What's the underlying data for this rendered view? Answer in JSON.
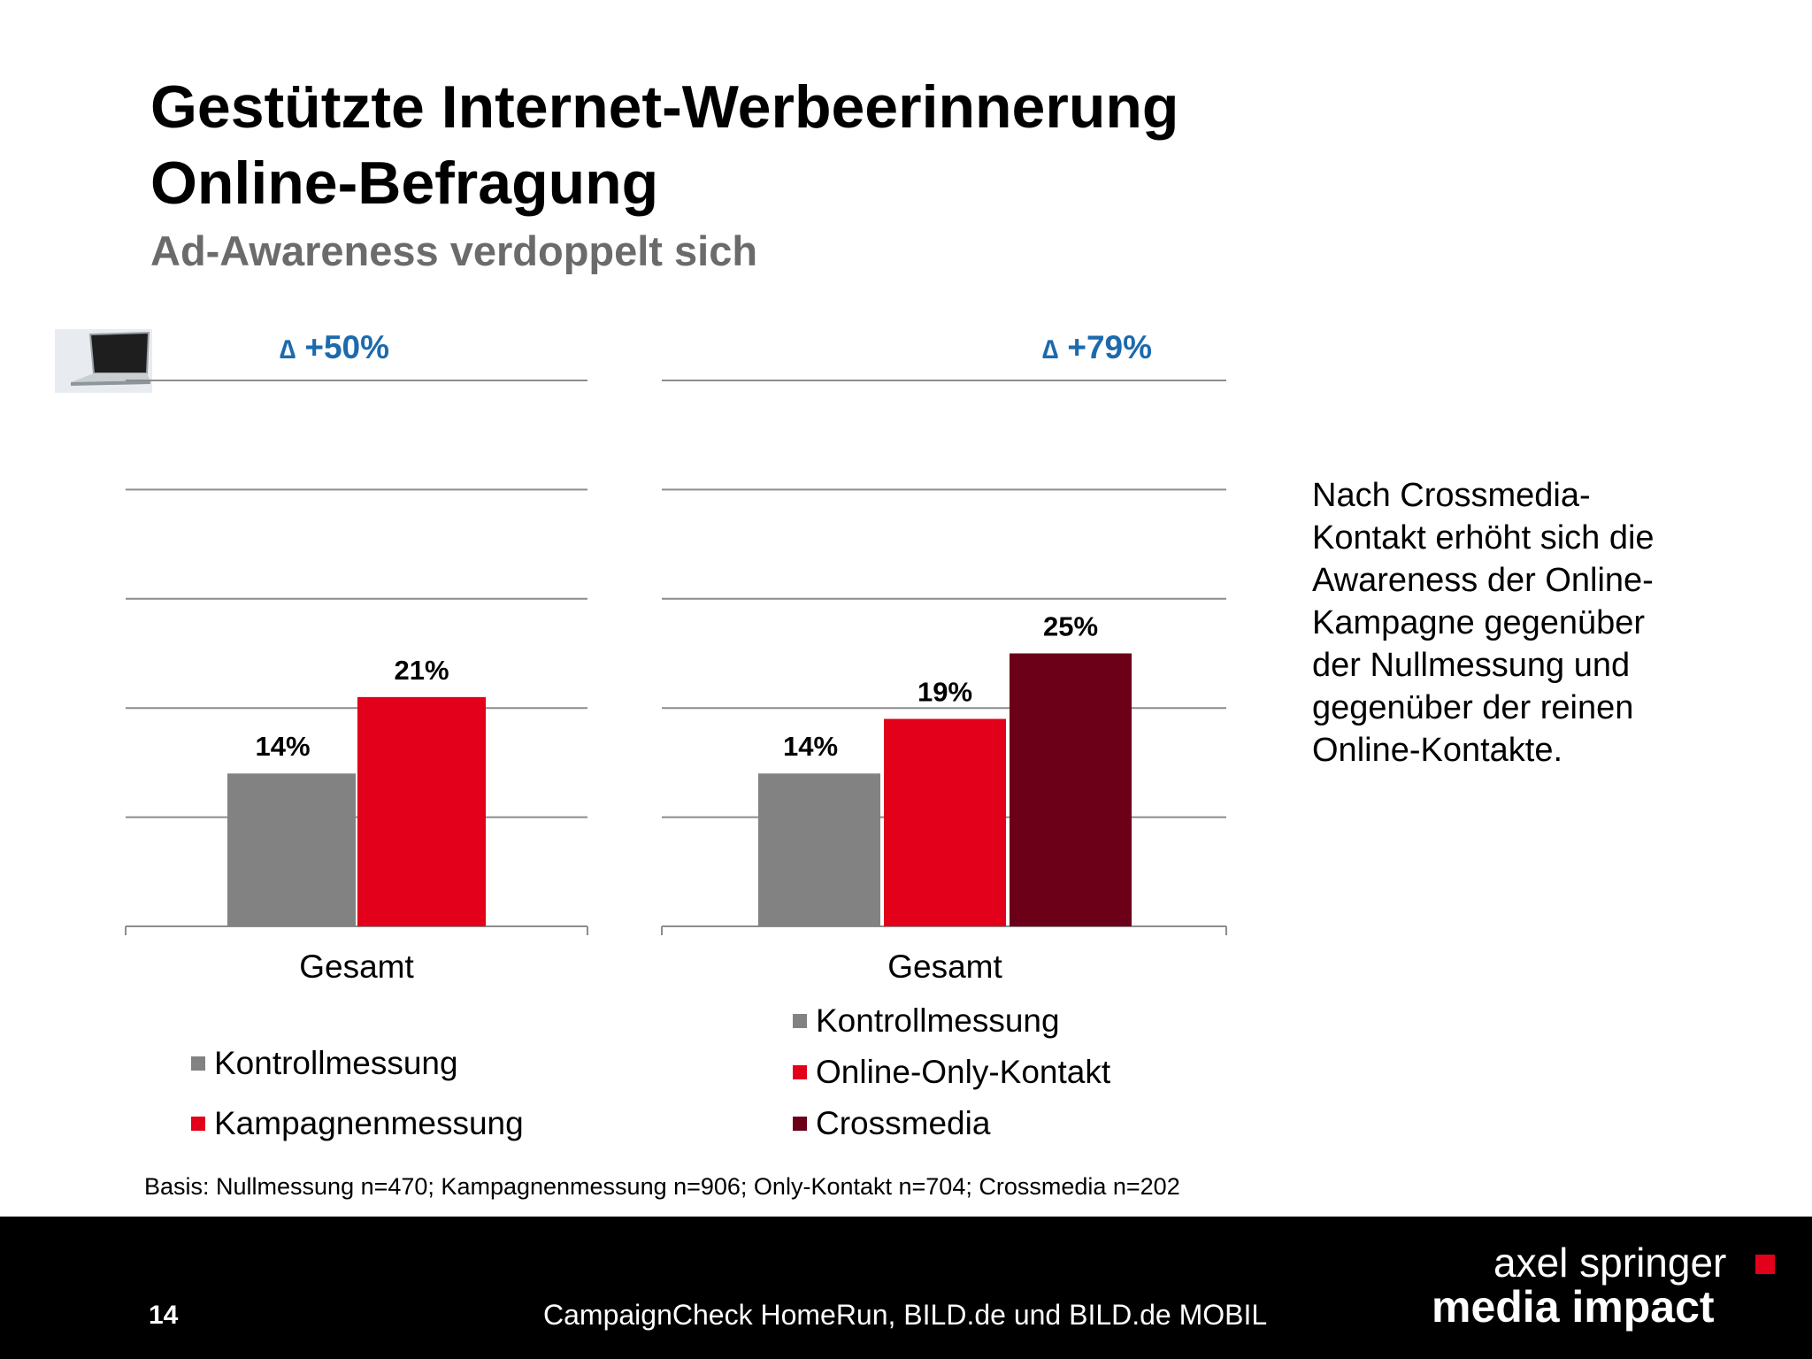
{
  "slide": {
    "title_line1": "Gestützte Internet-Werbeerinnerung",
    "title_line2": "Online-Befragung",
    "subtitle": "Ad-Awareness verdoppelt sich",
    "side_text": "Nach Crossmedia-Kontakt erhöht sich die Awareness der Online-Kampagne gegenüber der Nullmessung und gegenüber der reinen Online-Kontakte.",
    "basis": "Basis: Nullmessung n=470; Kampagnenmessung n=906; Only-Kontakt n=704; Crossmedia n=202"
  },
  "footer": {
    "page_number": "14",
    "text": "CampaignCheck HomeRun, BILD.de und BILD.de MOBIL",
    "logo_line1": "axel springer",
    "logo_line2": "media impact"
  },
  "colors": {
    "grey": "#828282",
    "red": "#e2001a",
    "darkred": "#6b0018",
    "delta_blue": "#1c6aad"
  },
  "chart_data": [
    {
      "type": "bar",
      "categories": [
        "Gesamt"
      ],
      "series": [
        {
          "name": "Kontrollmessung",
          "values": [
            14
          ],
          "label": "14%",
          "color": "#828282"
        },
        {
          "name": "Kampagnenmessung",
          "values": [
            21
          ],
          "label": "21%",
          "color": "#e2001a"
        }
      ],
      "ylim": [
        0,
        50
      ],
      "grid": true,
      "annotation": {
        "symbol": "∆",
        "text": "+50%"
      }
    },
    {
      "type": "bar",
      "categories": [
        "Gesamt"
      ],
      "series": [
        {
          "name": "Kontrollmessung",
          "values": [
            14
          ],
          "label": "14%",
          "color": "#828282"
        },
        {
          "name": "Online-Only-Kontakt",
          "values": [
            19
          ],
          "label": "19%",
          "color": "#e2001a"
        },
        {
          "name": "Crossmedia",
          "values": [
            25
          ],
          "label": "25%",
          "color": "#6b0018"
        }
      ],
      "ylim": [
        0,
        50
      ],
      "grid": true,
      "annotation": {
        "symbol": "∆",
        "text": "+79%"
      }
    }
  ]
}
